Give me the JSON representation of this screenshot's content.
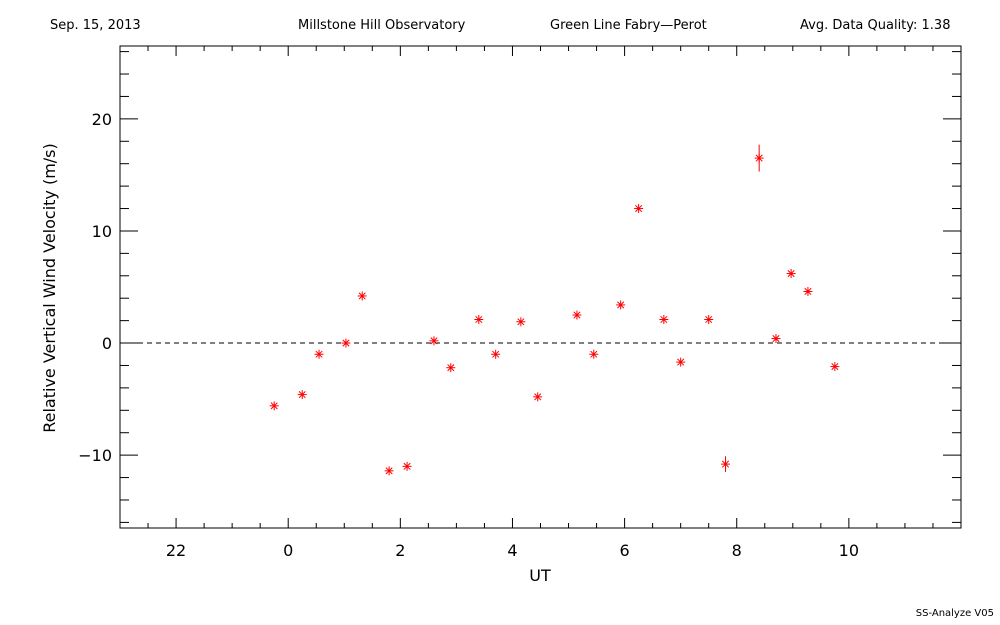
{
  "header": {
    "date": "Sep. 15, 2013",
    "observatory": "Millstone Hill Observatory",
    "instrument": "Green Line Fabry—Perot",
    "quality": "Avg. Data Quality: 1.38"
  },
  "footer": {
    "version": "SS-Analyze V05"
  },
  "chart_data": {
    "type": "scatter",
    "title": "",
    "xlabel": "UT",
    "ylabel": "Relative Vertical Wind Velocity (m/s)",
    "xlim": [
      -3,
      12
    ],
    "ylim": [
      -16.5,
      26.5
    ],
    "x_tick_labels": [
      [
        "22",
        -2
      ],
      [
        "0",
        0
      ],
      [
        "2",
        2
      ],
      [
        "4",
        4
      ],
      [
        "6",
        6
      ],
      [
        "8",
        8
      ],
      [
        "10",
        10
      ]
    ],
    "y_tick_labels": [
      [
        "20",
        20
      ],
      [
        "10",
        10
      ],
      [
        "0",
        0
      ],
      [
        "−10",
        -10
      ]
    ],
    "zero_line": true,
    "marker": "asterisk",
    "color": "#ff0000",
    "x": [
      -0.25,
      0.25,
      0.55,
      1.03,
      1.32,
      1.8,
      2.12,
      2.6,
      2.9,
      3.4,
      3.7,
      4.15,
      4.45,
      5.15,
      5.45,
      5.93,
      6.25,
      6.7,
      7.0,
      7.5,
      7.8,
      8.4,
      8.7,
      8.97,
      9.27,
      9.75
    ],
    "y": [
      -5.6,
      -4.6,
      -1.0,
      0.0,
      4.2,
      -11.4,
      -11.0,
      0.2,
      -2.2,
      2.1,
      -1.0,
      1.9,
      -4.8,
      2.5,
      -1.0,
      3.4,
      12.0,
      2.1,
      -1.7,
      2.1,
      -10.8,
      16.5,
      0.4,
      6.2,
      4.6,
      -2.1
    ],
    "y_err": [
      0,
      0,
      0,
      0,
      0,
      0,
      0,
      0,
      0,
      0,
      0,
      0,
      0,
      0,
      0,
      0,
      0,
      0,
      0,
      0,
      0.7,
      1.2,
      0,
      0,
      0,
      0
    ]
  }
}
